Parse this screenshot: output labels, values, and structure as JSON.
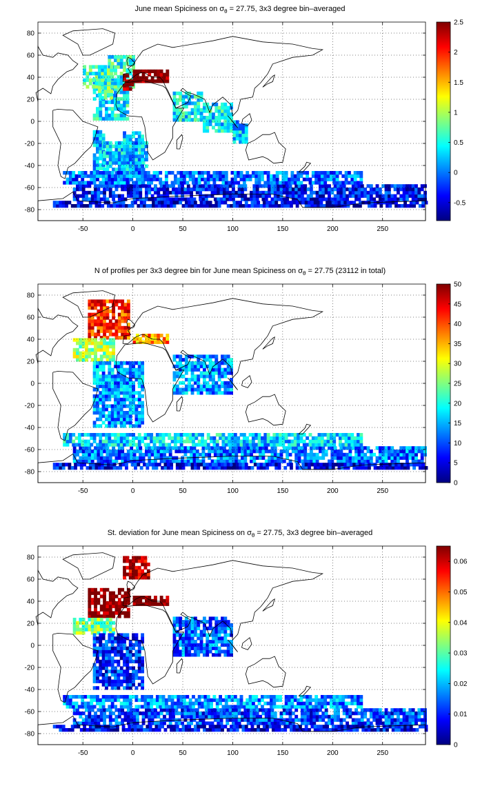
{
  "chart_data": [
    {
      "type": "heatmap",
      "title_pre": "June mean Spiciness on σ",
      "title_sub": "θ",
      "title_post": " = 27.75, 3x3 degree bin–averaged",
      "xlim": [
        -95,
        293
      ],
      "ylim": [
        -90,
        90
      ],
      "xticks": [
        -50,
        0,
        50,
        100,
        150,
        200,
        250
      ],
      "yticks": [
        -80,
        -60,
        -40,
        -20,
        0,
        20,
        40,
        60,
        80
      ],
      "grid": "dotted",
      "colormap": "jet",
      "clim": [
        -0.8,
        2.5
      ],
      "cticks": [
        -0.5,
        0,
        0.5,
        1,
        1.5,
        2,
        2.5
      ],
      "cells": [
        [
          -40,
          -5,
          3,
          1,
          40,
          0.3
        ],
        [
          -40,
          -30,
          3,
          -50,
          -10,
          0.1
        ],
        [
          -30,
          15,
          3,
          -60,
          -20,
          0.2
        ],
        [
          -10,
          10,
          3,
          -45,
          -10,
          0.1
        ],
        [
          -25,
          0,
          3,
          30,
          60,
          0.4
        ],
        [
          -50,
          -20,
          3,
          30,
          50,
          0.5
        ],
        [
          -35,
          -20,
          3,
          20,
          30,
          0.6
        ],
        [
          -10,
          -2,
          3,
          28,
          42,
          2.2
        ],
        [
          -8,
          0,
          3,
          32,
          38,
          2.5
        ],
        [
          0,
          36,
          3,
          35,
          45,
          2.5
        ],
        [
          40,
          70,
          3,
          0,
          25,
          0.3
        ],
        [
          70,
          100,
          3,
          -10,
          15,
          0.3
        ],
        [
          100,
          115,
          3,
          -20,
          0,
          0.2
        ],
        [
          -60,
          293,
          3,
          -72,
          -57,
          -0.45
        ],
        [
          -70,
          230,
          3,
          -57,
          -45,
          -0.15
        ],
        [
          -80,
          293,
          3,
          -78,
          -72,
          -0.6
        ]
      ]
    },
    {
      "type": "heatmap",
      "title_pre": "N of profiles per 3x3 degree bin for June mean Spiciness on σ",
      "title_sub": "θ",
      "title_post": " = 27.75 (23112 in total)",
      "xlim": [
        -95,
        293
      ],
      "ylim": [
        -90,
        90
      ],
      "xticks": [
        -50,
        0,
        50,
        100,
        150,
        200,
        250
      ],
      "yticks": [
        -80,
        -60,
        -40,
        -20,
        0,
        20,
        40,
        60,
        80
      ],
      "grid": "dotted",
      "colormap": "jet",
      "clim": [
        0,
        50
      ],
      "cticks": [
        0,
        5,
        10,
        15,
        20,
        25,
        30,
        35,
        40,
        45,
        50
      ],
      "cells": [
        [
          -45,
          -5,
          3,
          40,
          75,
          40
        ],
        [
          -60,
          -20,
          3,
          20,
          40,
          25
        ],
        [
          -40,
          10,
          3,
          -40,
          20,
          12
        ],
        [
          0,
          36,
          3,
          36,
          44,
          35
        ],
        [
          40,
          100,
          3,
          -10,
          25,
          12
        ],
        [
          -60,
          293,
          3,
          -72,
          -57,
          10
        ],
        [
          -70,
          230,
          3,
          -57,
          -45,
          15
        ],
        [
          -80,
          293,
          3,
          -78,
          -72,
          4
        ]
      ]
    },
    {
      "type": "heatmap",
      "title_pre": "St. deviation for June mean Spiciness on σ",
      "title_sub": "θ",
      "title_post": " = 27.75, 3x3 degree bin–averaged",
      "xlim": [
        -95,
        293
      ],
      "ylim": [
        -90,
        90
      ],
      "xticks": [
        -50,
        0,
        50,
        100,
        150,
        200,
        250
      ],
      "yticks": [
        -80,
        -60,
        -40,
        -20,
        0,
        20,
        40,
        60,
        80
      ],
      "grid": "dotted",
      "colormap": "jet",
      "clim": [
        0,
        0.065
      ],
      "cticks": [
        0,
        0.01,
        0.02,
        0.03,
        0.04,
        0.05,
        0.06
      ],
      "cells": [
        [
          -45,
          -5,
          3,
          25,
          50,
          0.065
        ],
        [
          -60,
          -20,
          3,
          10,
          25,
          0.03
        ],
        [
          -10,
          15,
          3,
          60,
          80,
          0.06
        ],
        [
          0,
          36,
          3,
          36,
          44,
          0.065
        ],
        [
          -40,
          10,
          3,
          -40,
          10,
          0.008
        ],
        [
          40,
          100,
          3,
          -10,
          25,
          0.012
        ],
        [
          -60,
          293,
          3,
          -72,
          -57,
          0.01
        ],
        [
          -70,
          230,
          3,
          -57,
          -45,
          0.015
        ],
        [
          -80,
          293,
          3,
          -78,
          -72,
          0.005
        ]
      ]
    }
  ]
}
